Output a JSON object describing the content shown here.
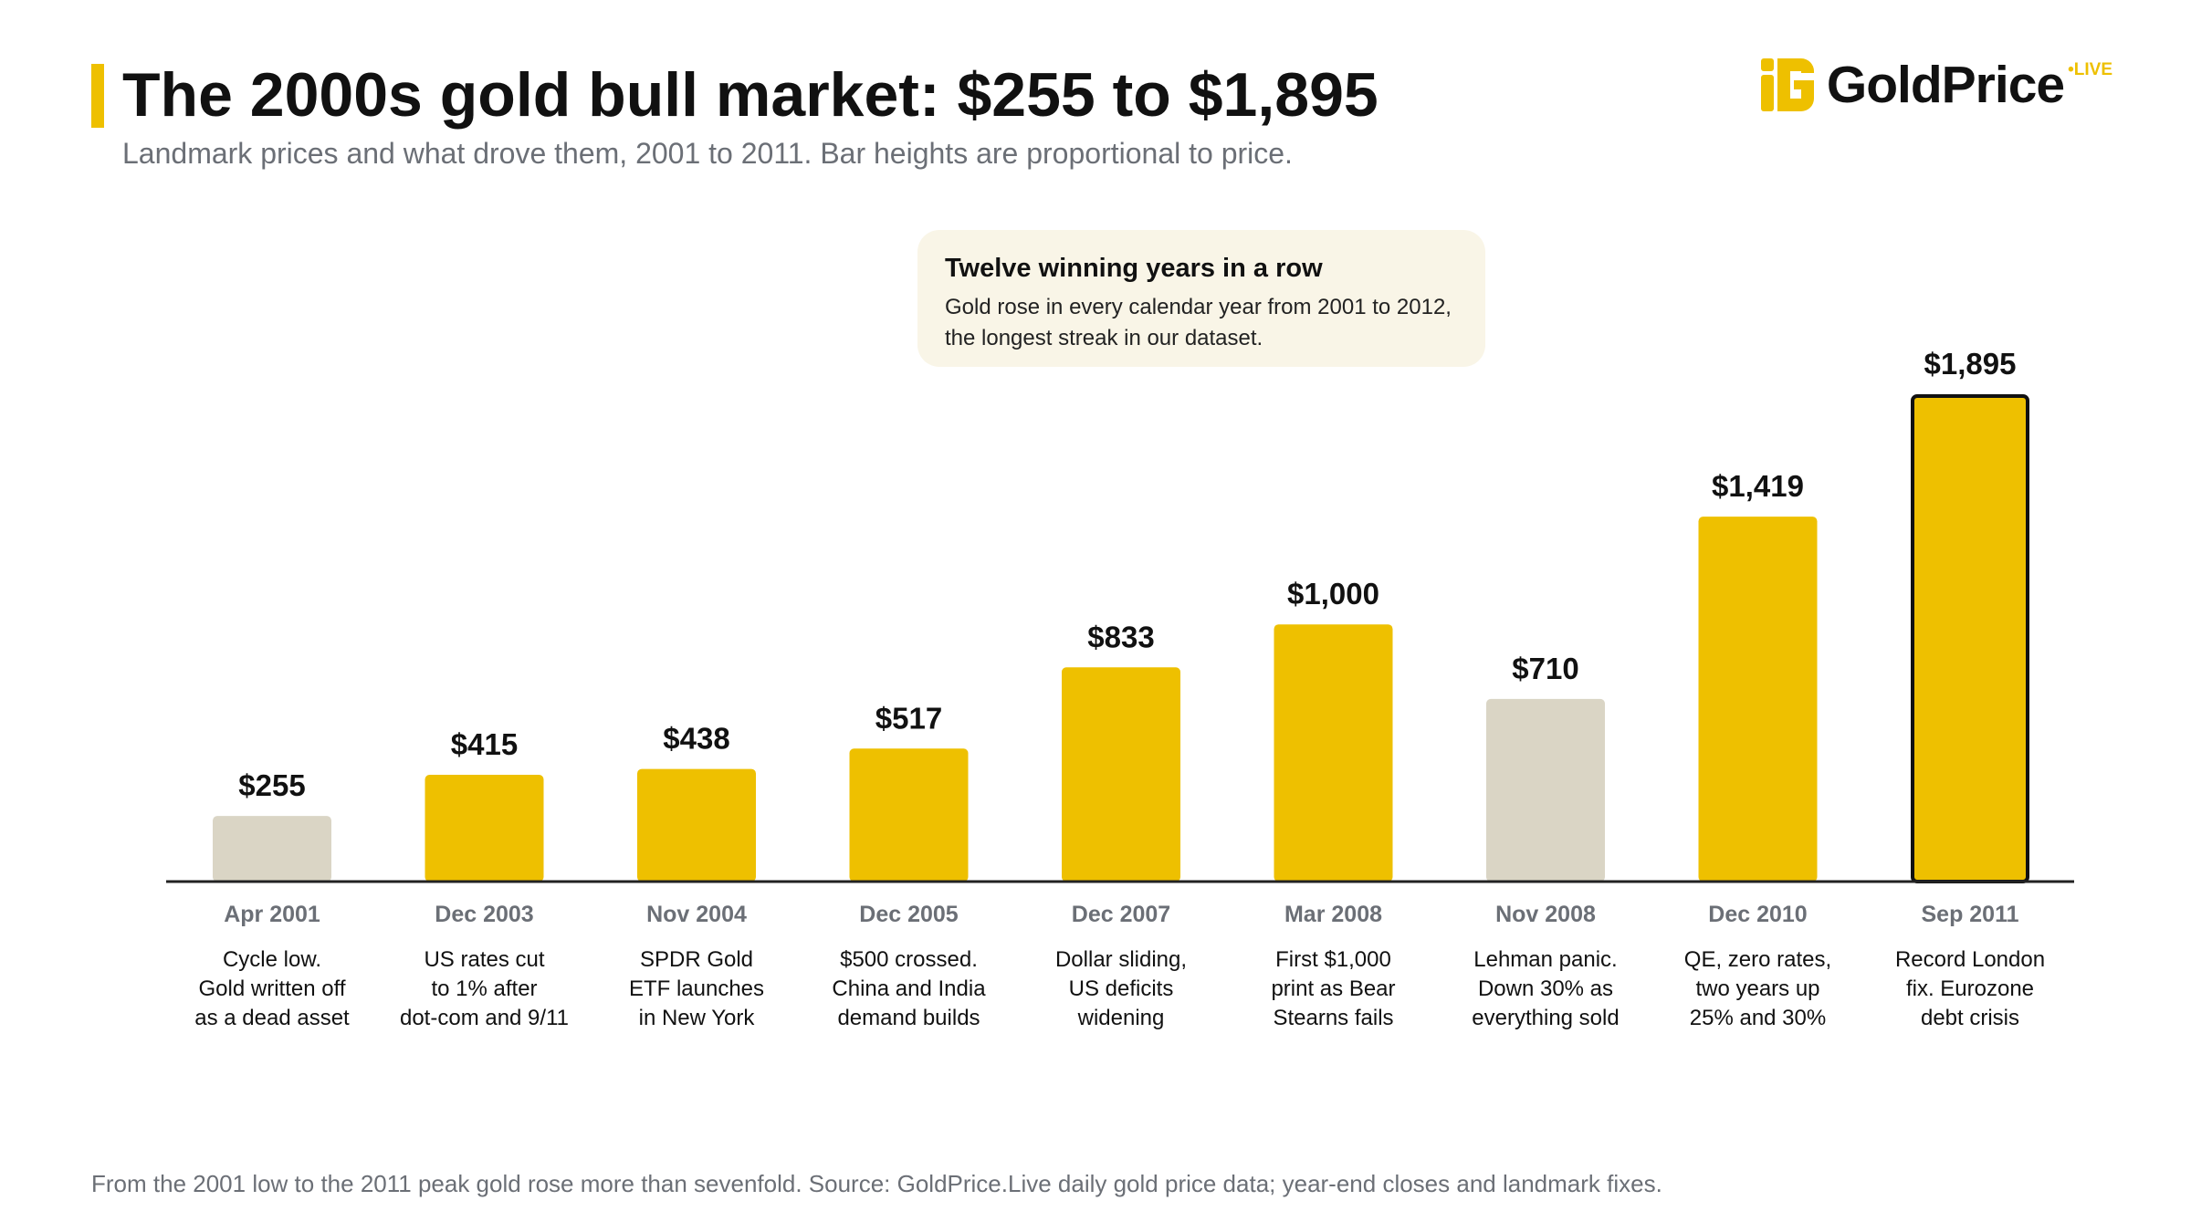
{
  "header": {
    "title": "The 2000s gold bull market: $255 to $1,895",
    "subtitle": "Landmark prices and what drove them, 2001 to 2011. Bar heights are proportional to price."
  },
  "logo": {
    "text": "GoldPrice",
    "suffix": "•LIVE",
    "icon": "goldprice-logo-icon"
  },
  "callout": {
    "title": "Twelve winning years in a row",
    "body": "Gold rose in every calendar year from 2001 to 2012, the longest streak in our dataset."
  },
  "colors": {
    "gold": "#EEC000",
    "beige": "#DAD5C5",
    "highlight_outline": "#111111",
    "axis": "#222222",
    "label_gray": "#6b6f76"
  },
  "chart_data": {
    "type": "bar",
    "categories": [
      "Apr 2001",
      "Dec 2003",
      "Nov 2004",
      "Dec 2005",
      "Dec 2007",
      "Mar 2008",
      "Nov 2008",
      "Dec 2010",
      "Sep 2011"
    ],
    "values": [
      255,
      415,
      438,
      517,
      833,
      1000,
      710,
      1419,
      1895
    ],
    "value_labels": [
      "$255",
      "$415",
      "$438",
      "$517",
      "$833",
      "$1,000",
      "$710",
      "$1,419",
      "$1,895"
    ],
    "annotations": [
      [
        "Cycle low.",
        "Gold written off",
        "as a dead asset"
      ],
      [
        "US rates cut",
        "to 1% after",
        "dot-com and 9/11"
      ],
      [
        "SPDR Gold",
        "ETF launches",
        "in New York"
      ],
      [
        "$500 crossed.",
        "China and India",
        "demand builds"
      ],
      [
        "Dollar sliding,",
        "US deficits",
        "widening"
      ],
      [
        "First $1,000",
        "print as Bear",
        "Stearns fails"
      ],
      [
        "Lehman panic.",
        "Down 30% as",
        "everything sold"
      ],
      [
        "QE, zero rates,",
        "two years up",
        "25% and 30%"
      ],
      [
        "Record London",
        "fix. Eurozone",
        "debt crisis"
      ]
    ],
    "bar_style": [
      "beige",
      "gold",
      "gold",
      "gold",
      "gold",
      "gold",
      "beige",
      "gold",
      "gold-highlight"
    ],
    "ylim": [
      0,
      1895
    ],
    "grid": false,
    "legend": "none",
    "xlabel": "",
    "ylabel": ""
  },
  "footer": {
    "note": "From the 2001 low to the 2011 peak gold rose more than sevenfold. Source: GoldPrice.Live daily gold price data; year-end closes and landmark fixes."
  }
}
